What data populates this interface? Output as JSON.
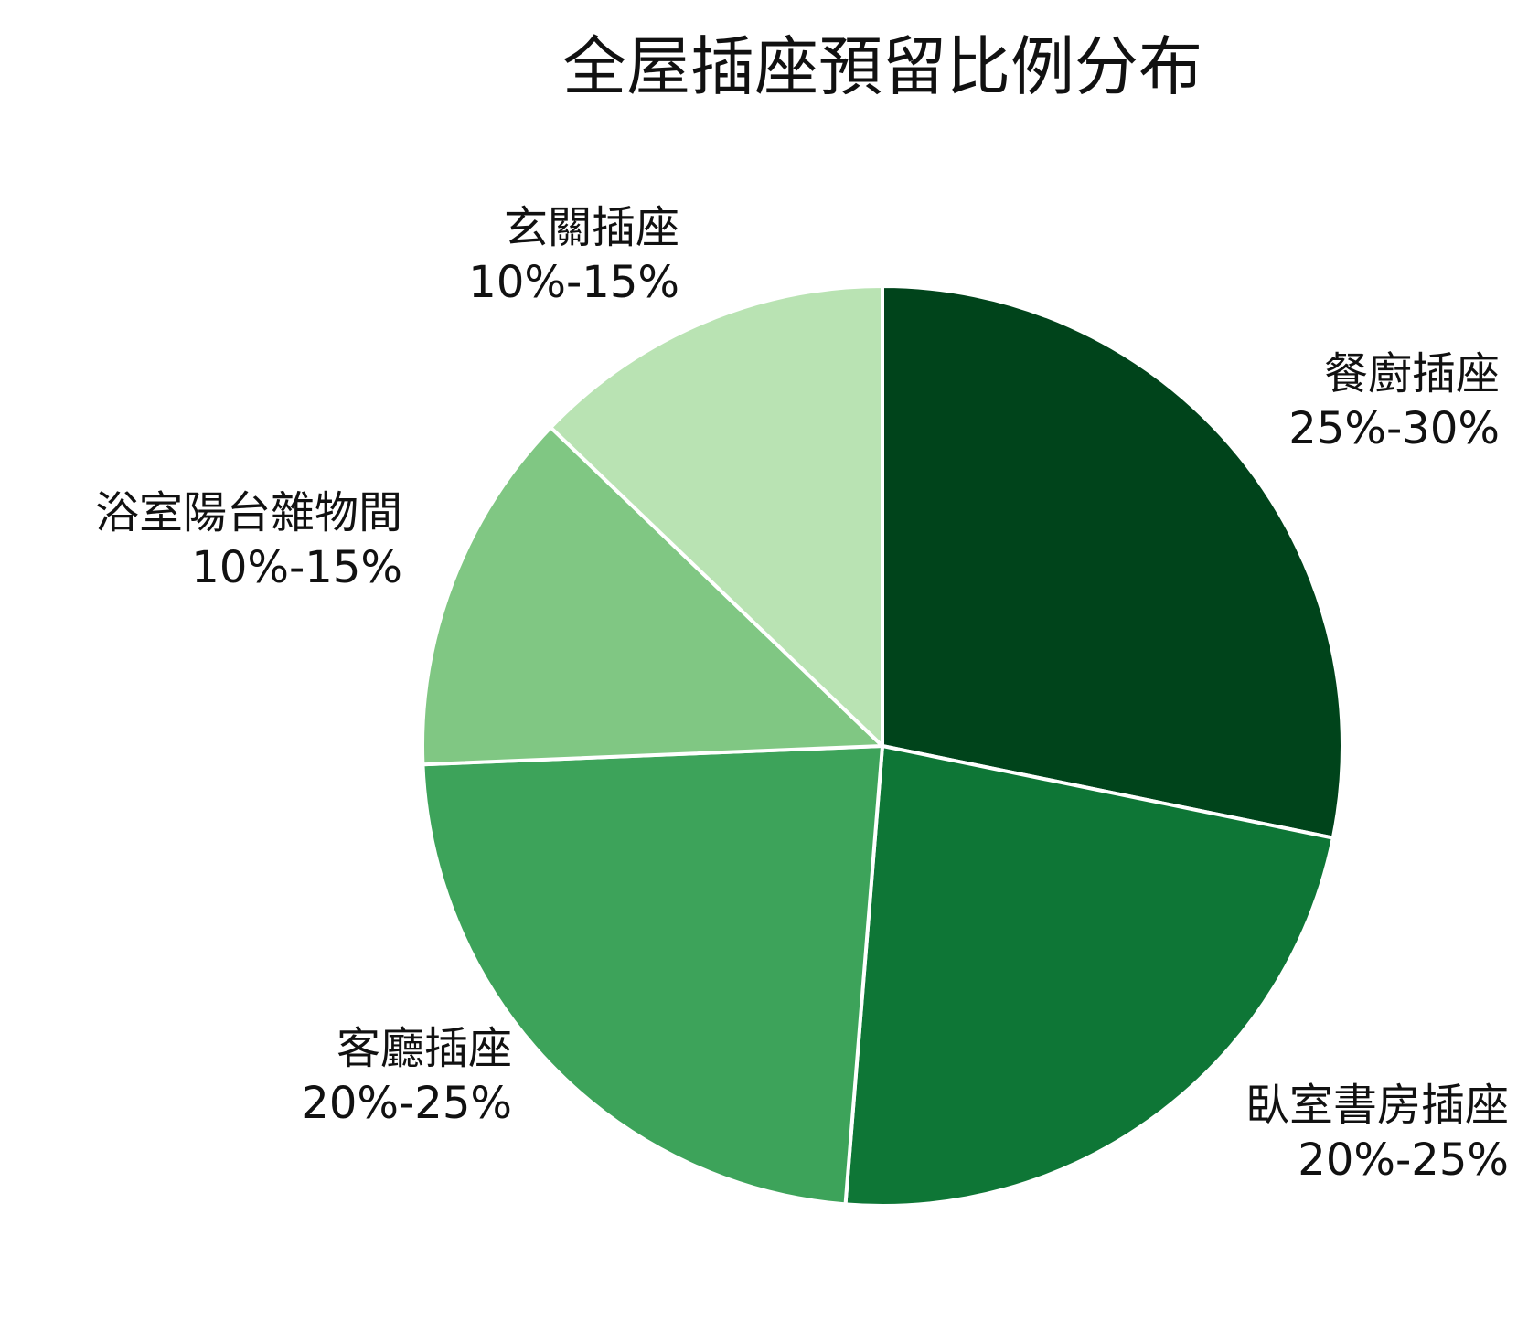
{
  "chart_data": {
    "type": "pie",
    "title": "全屋插座預留比例分布",
    "start": "12 o'clock",
    "direction": "clockwise",
    "slices": [
      {
        "label": "餐廚插座",
        "range_text": "25%-30%",
        "value": 27.5,
        "color": "#00441b"
      },
      {
        "label": "臥室書房插座",
        "range_text": "20%-25%",
        "value": 22.5,
        "color": "#0e7636"
      },
      {
        "label": "客廳插座",
        "range_text": "20%-25%",
        "value": 22.5,
        "color": "#3da35a"
      },
      {
        "label": "浴室陽台雜物間",
        "range_text": "10%-15%",
        "value": 12.5,
        "color": "#80c783"
      },
      {
        "label": "玄關插座",
        "range_text": "10%-15%",
        "value": 12.5,
        "color": "#b9e3b3"
      }
    ]
  }
}
